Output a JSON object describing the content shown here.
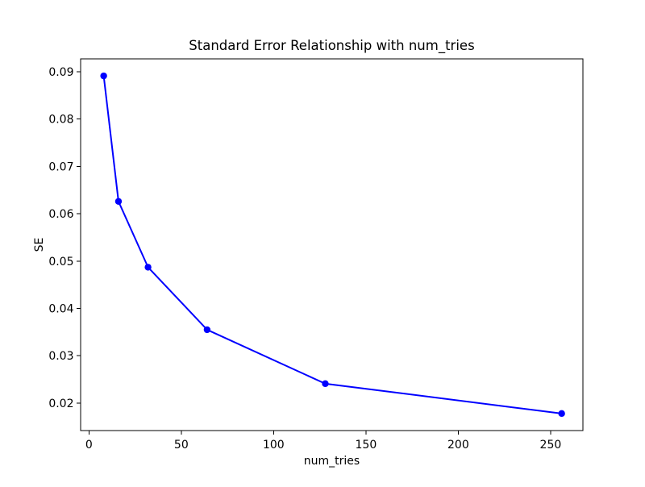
{
  "chart_data": {
    "type": "line",
    "title": "Standard Error Relationship with num_tries",
    "xlabel": "num_tries",
    "ylabel": "SE",
    "x": [
      8,
      16,
      32,
      64,
      128,
      256
    ],
    "y": [
      0.0891,
      0.0626,
      0.0487,
      0.0355,
      0.0241,
      0.0178
    ],
    "xlim": [
      -4.5,
      267.5
    ],
    "ylim": [
      0.0142,
      0.0927
    ],
    "xticks": {
      "values": [
        0,
        50,
        100,
        150,
        200,
        250
      ],
      "labels": [
        "0",
        "50",
        "100",
        "150",
        "200",
        "250"
      ]
    },
    "yticks": {
      "values": [
        0.02,
        0.03,
        0.04,
        0.05,
        0.06,
        0.07,
        0.08,
        0.09
      ],
      "labels": [
        "0.02",
        "0.03",
        "0.04",
        "0.05",
        "0.06",
        "0.07",
        "0.08",
        "0.09"
      ]
    },
    "line_color": "#0000ff",
    "marker": "circle",
    "marker_color": "#0000ff",
    "grid": false,
    "legend": null,
    "background": "#ffffff",
    "spine_color": "#000000"
  }
}
